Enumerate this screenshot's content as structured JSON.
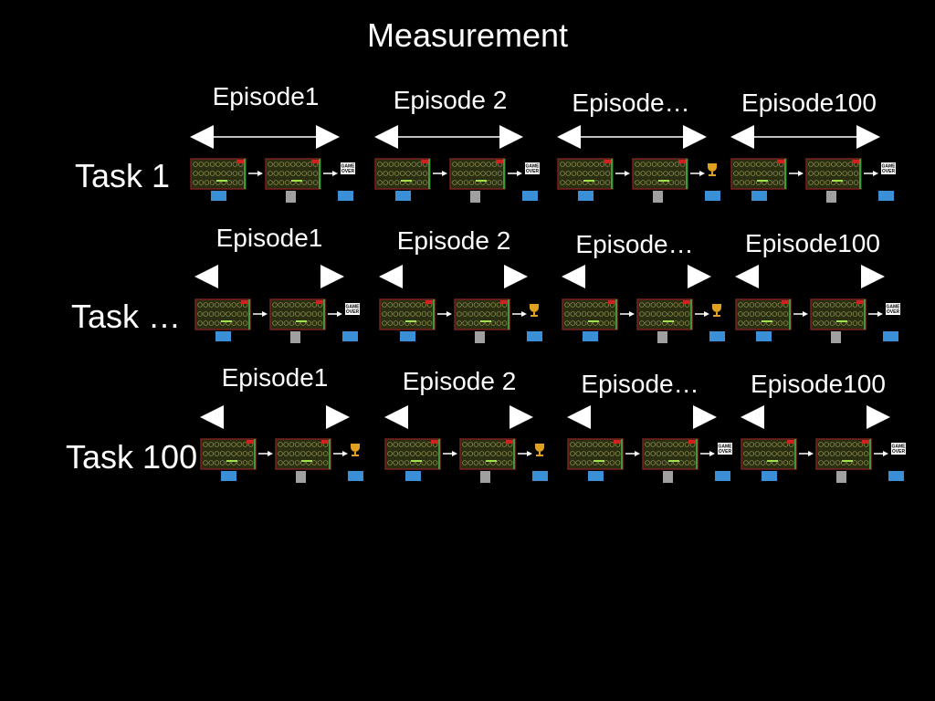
{
  "title": "Measurement",
  "tasks": [
    {
      "label": "Task 1",
      "episodes": [
        {
          "label": "Episode1",
          "outcome": "game-over"
        },
        {
          "label": "Episode 2",
          "outcome": "game-over"
        },
        {
          "label": "Episode…",
          "outcome": "trophy"
        },
        {
          "label": "Episode100",
          "outcome": "game-over"
        }
      ]
    },
    {
      "label": "Task …",
      "episodes": [
        {
          "label": "Episode1",
          "outcome": "game-over"
        },
        {
          "label": "Episode 2",
          "outcome": "trophy"
        },
        {
          "label": "Episode…",
          "outcome": "trophy"
        },
        {
          "label": "Episode100",
          "outcome": "game-over"
        }
      ]
    },
    {
      "label": "Task 100",
      "episodes": [
        {
          "label": "Episode1",
          "outcome": "trophy"
        },
        {
          "label": "Episode 2",
          "outcome": "trophy"
        },
        {
          "label": "Episode…",
          "outcome": "game-over"
        },
        {
          "label": "Episode100",
          "outcome": "game-over"
        }
      ]
    }
  ],
  "game_over_text": [
    "GAME",
    "OVER"
  ],
  "colors": {
    "background": "#000000",
    "text": "#ffffff",
    "action_blue": "#3a8fd6",
    "action_gray": "#a0a0a0",
    "screen_bg": "#2a2f12",
    "trophy": "#e0a020"
  }
}
